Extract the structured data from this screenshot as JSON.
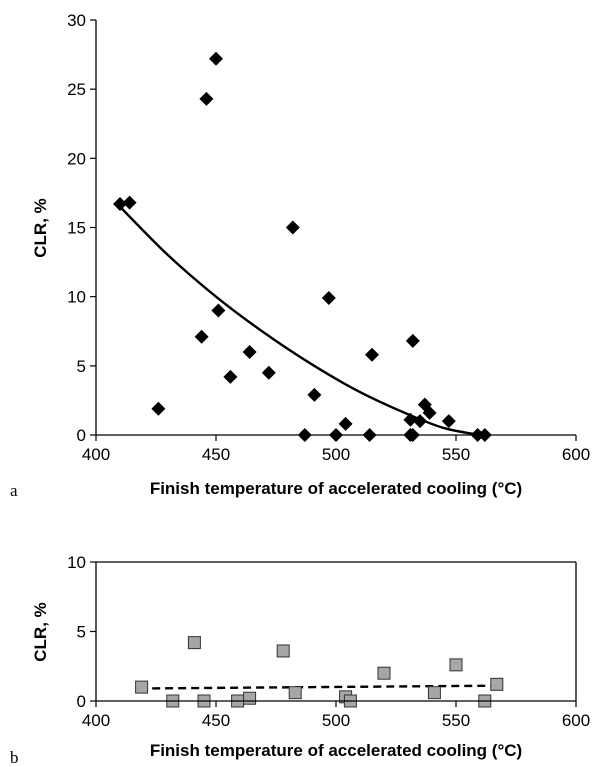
{
  "chart_data": [
    {
      "panel_label": "a",
      "type": "scatter",
      "xlabel": "Finish temperature of accelerated cooling (°C)",
      "ylabel": "CLR, %",
      "xlim": [
        400,
        600
      ],
      "ylim": [
        0,
        30
      ],
      "xticks": [
        400,
        450,
        500,
        550,
        600
      ],
      "yticks": [
        0,
        5,
        10,
        15,
        20,
        25,
        30
      ],
      "marker": "diamond",
      "marker_color": "#000000",
      "points": [
        {
          "x": 410,
          "y": 16.7
        },
        {
          "x": 414,
          "y": 16.8
        },
        {
          "x": 426,
          "y": 1.9
        },
        {
          "x": 444,
          "y": 7.1
        },
        {
          "x": 446,
          "y": 24.3
        },
        {
          "x": 450,
          "y": 27.2
        },
        {
          "x": 451,
          "y": 9.0
        },
        {
          "x": 456,
          "y": 4.2
        },
        {
          "x": 464,
          "y": 6.0
        },
        {
          "x": 472,
          "y": 4.5
        },
        {
          "x": 482,
          "y": 15.0
        },
        {
          "x": 487,
          "y": 0.0
        },
        {
          "x": 491,
          "y": 2.9
        },
        {
          "x": 497,
          "y": 9.9
        },
        {
          "x": 500,
          "y": 0.0
        },
        {
          "x": 504,
          "y": 0.8
        },
        {
          "x": 514,
          "y": 0.0
        },
        {
          "x": 515,
          "y": 5.8
        },
        {
          "x": 531,
          "y": 1.1
        },
        {
          "x": 531,
          "y": 0.0
        },
        {
          "x": 532,
          "y": 6.8
        },
        {
          "x": 532,
          "y": 0.0
        },
        {
          "x": 535,
          "y": 1.0
        },
        {
          "x": 537,
          "y": 2.2
        },
        {
          "x": 539,
          "y": 1.6
        },
        {
          "x": 547,
          "y": 1.0
        },
        {
          "x": 559,
          "y": 0.0
        },
        {
          "x": 562,
          "y": 0.0
        }
      ],
      "trendline": {
        "style": "solid",
        "color": "#000000",
        "points": [
          [
            410,
            16.5
          ],
          [
            430,
            13.0
          ],
          [
            450,
            10.0
          ],
          [
            470,
            7.4
          ],
          [
            490,
            5.1
          ],
          [
            510,
            3.1
          ],
          [
            530,
            1.5
          ],
          [
            545,
            0.5
          ],
          [
            560,
            0.0
          ]
        ]
      }
    },
    {
      "panel_label": "b",
      "type": "scatter",
      "xlabel": "Finish temperature of accelerated cooling (°C)",
      "ylabel": "CLR, %",
      "xlim": [
        400,
        600
      ],
      "ylim": [
        0,
        10
      ],
      "xticks": [
        400,
        450,
        500,
        550,
        600
      ],
      "yticks": [
        0,
        5,
        10
      ],
      "marker": "square",
      "marker_color": "#a6a6a6",
      "points": [
        {
          "x": 419,
          "y": 1.0
        },
        {
          "x": 432,
          "y": 0.0
        },
        {
          "x": 441,
          "y": 4.2
        },
        {
          "x": 445,
          "y": 0.0
        },
        {
          "x": 459,
          "y": 0.0
        },
        {
          "x": 464,
          "y": 0.2
        },
        {
          "x": 478,
          "y": 3.6
        },
        {
          "x": 483,
          "y": 0.6
        },
        {
          "x": 504,
          "y": 0.3
        },
        {
          "x": 506,
          "y": 0.0
        },
        {
          "x": 520,
          "y": 2.0
        },
        {
          "x": 541,
          "y": 0.6
        },
        {
          "x": 550,
          "y": 2.6
        },
        {
          "x": 562,
          "y": 0.0
        },
        {
          "x": 567,
          "y": 1.2
        }
      ],
      "trendline": {
        "style": "dashed",
        "color": "#000000",
        "points": [
          [
            418,
            0.9
          ],
          [
            565,
            1.1
          ]
        ]
      }
    }
  ]
}
